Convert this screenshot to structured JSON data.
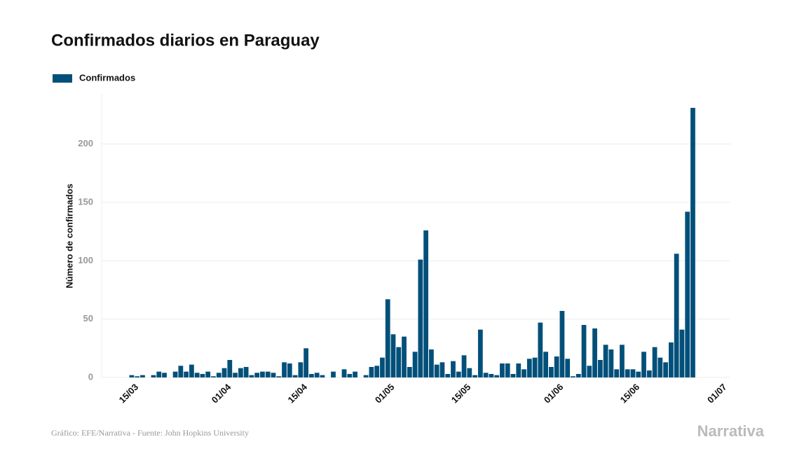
{
  "chart_data": {
    "type": "bar",
    "title": "Confirmados diarios en Paraguay",
    "y_label": "Número de confirmados",
    "series": [
      {
        "name": "Confirmados",
        "color": "#02507a",
        "values": [
          2,
          1,
          2,
          0,
          2,
          5,
          4,
          0,
          5,
          10,
          5,
          11,
          4,
          3,
          5,
          1,
          4,
          8,
          15,
          4,
          8,
          9,
          2,
          4,
          5,
          5,
          4,
          1,
          13,
          12,
          2,
          13,
          25,
          3,
          4,
          2,
          0,
          5,
          0,
          7,
          3,
          5,
          0,
          2,
          9,
          10,
          17,
          67,
          37,
          26,
          35,
          9,
          22,
          101,
          126,
          24,
          11,
          13,
          3,
          14,
          5,
          19,
          8,
          2,
          41,
          4,
          3,
          2,
          12,
          12,
          3,
          12,
          7,
          16,
          17,
          47,
          22,
          9,
          18,
          57,
          16,
          1,
          3,
          45,
          10,
          42,
          15,
          28,
          24,
          7,
          28,
          7,
          7,
          5,
          22,
          6,
          26,
          17,
          13,
          30,
          106,
          41,
          142,
          231,
          null,
          null,
          null,
          null,
          null,
          null
        ]
      }
    ],
    "categories": [
      null,
      "15/03",
      null,
      null,
      null,
      null,
      null,
      null,
      null,
      null,
      null,
      null,
      null,
      null,
      null,
      null,
      null,
      null,
      "01/04",
      null,
      null,
      null,
      null,
      null,
      null,
      null,
      null,
      null,
      null,
      null,
      null,
      null,
      "15/04",
      null,
      null,
      null,
      null,
      null,
      null,
      null,
      null,
      null,
      null,
      null,
      null,
      null,
      null,
      null,
      "01/05",
      null,
      null,
      null,
      null,
      null,
      null,
      null,
      null,
      null,
      null,
      null,
      null,
      null,
      "15/05",
      null,
      null,
      null,
      null,
      null,
      null,
      null,
      null,
      null,
      null,
      null,
      null,
      null,
      null,
      null,
      null,
      "01/06",
      null,
      null,
      null,
      null,
      null,
      null,
      null,
      null,
      null,
      null,
      null,
      null,
      null,
      "15/06",
      null,
      null,
      null,
      null,
      null,
      null,
      null,
      null,
      null,
      null,
      null,
      null,
      null,
      null,
      null,
      "01/07"
    ],
    "ylim": [
      0,
      240
    ],
    "yticks": [
      0,
      50,
      100,
      150,
      200
    ],
    "grid": true,
    "legend": "top-left",
    "source": "Gráfico: EFE/Narrativa - Fuente: John Hopkins University",
    "logo": "Narrativa"
  }
}
